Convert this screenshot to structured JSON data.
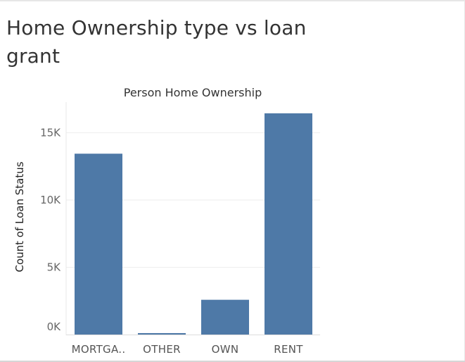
{
  "title": "Home Ownership type vs loan grant",
  "chart_data": {
    "type": "bar",
    "title": "Person Home Ownership",
    "xlabel": "",
    "ylabel": "Count of Loan Status",
    "categories": [
      "MORTGA..",
      "OTHER",
      "OWN",
      "RENT"
    ],
    "values": [
      13444,
      107,
      2584,
      16446
    ],
    "ylim": [
      0,
      17500
    ],
    "yticks": [
      0,
      5000,
      10000,
      15000
    ],
    "ytick_labels": [
      "0K",
      "5K",
      "10K",
      "15K"
    ],
    "grid": true,
    "bar_color": "#4e79a7"
  }
}
